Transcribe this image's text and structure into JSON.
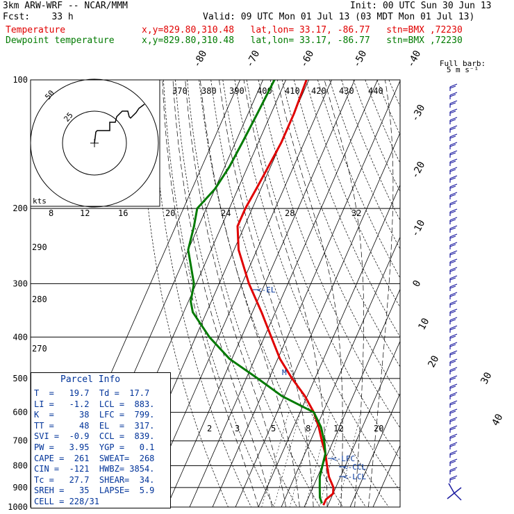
{
  "header": {
    "title": "3km ARW-WRF -- NCAR/MMM",
    "init": "Init: 00 UTC Sun 30 Jun 13",
    "fcst": "Fcst:    33 h",
    "valid": "Valid: 09 UTC Mon 01 Jul 13 (03 MDT Mon 01 Jul 13)",
    "temp_label": "Temperature",
    "dew_label": "Dewpoint temperature",
    "temp_loc": "x,y=829.80,310.48   lat,lon= 33.17, -86.77   stn=BMX ,72230",
    "dew_loc": "x,y=829.80,310.48   lat,lon= 33.17, -86.77   stn=BMX ,72230"
  },
  "colors": {
    "temperature": "#e00000",
    "dewpoint": "#007a00",
    "wind": "#1a1aa0",
    "parcel": "#003399"
  },
  "chart_data": {
    "type": "line",
    "subtype": "skew-T log-P sounding",
    "pressure_levels": [
      "100",
      "200",
      "300",
      "400",
      "500",
      "600",
      "700",
      "800",
      "900",
      "1000"
    ],
    "isotherm_labels": [
      "-80",
      "-70",
      "-60",
      "-50",
      "-40",
      "-30",
      "-20",
      "-10",
      "0",
      "10",
      "20",
      "30",
      "40"
    ],
    "theta_labels": [
      "370",
      "380",
      "390",
      "400",
      "410",
      "420",
      "430",
      "440"
    ],
    "thetae_labels": [
      "290",
      "280",
      "270"
    ],
    "mixing_ratio_labels": [
      "2",
      "3",
      "5",
      "8",
      "12",
      "20"
    ],
    "hodograph_speed_labels": [
      "8",
      "12",
      "16",
      "20",
      "24",
      "28",
      "32"
    ],
    "hodograph": {
      "units": "kts",
      "ring_labels": [
        "25",
        "50"
      ]
    },
    "level_marks": {
      "el": "EL",
      "lfc": "LFC",
      "ccl": "CCL",
      "lcl": "LCL",
      "lapse": "M"
    },
    "wind_barb_legend": [
      "Full barb:",
      "5 m s⁻¹"
    ],
    "series": [
      {
        "name": "Temperature",
        "points": [
          [
            100,
            -71
          ],
          [
            120,
            -70
          ],
          [
            140,
            -70
          ],
          [
            160,
            -71
          ],
          [
            180,
            -72
          ],
          [
            200,
            -73
          ],
          [
            220,
            -73
          ],
          [
            250,
            -68
          ],
          [
            300,
            -57
          ],
          [
            350,
            -46
          ],
          [
            400,
            -37
          ],
          [
            450,
            -29
          ],
          [
            500,
            -20
          ],
          [
            550,
            -11
          ],
          [
            600,
            -4
          ],
          [
            650,
            1
          ],
          [
            700,
            5
          ],
          [
            750,
            9
          ],
          [
            800,
            12
          ],
          [
            850,
            15
          ],
          [
            900,
            19
          ],
          [
            930,
            20
          ],
          [
            960,
            18
          ],
          [
            990,
            18
          ]
        ]
      },
      {
        "name": "Dewpoint temperature",
        "points": [
          [
            100,
            -85
          ],
          [
            120,
            -86
          ],
          [
            140,
            -87
          ],
          [
            160,
            -88
          ],
          [
            180,
            -90
          ],
          [
            200,
            -94
          ],
          [
            220,
            -92
          ],
          [
            250,
            -90
          ],
          [
            300,
            -81
          ],
          [
            330,
            -79
          ],
          [
            350,
            -76
          ],
          [
            400,
            -64
          ],
          [
            450,
            -51
          ],
          [
            500,
            -35
          ],
          [
            550,
            -21
          ],
          [
            600,
            -4
          ],
          [
            650,
            2
          ],
          [
            700,
            6
          ],
          [
            750,
            9
          ],
          [
            800,
            10
          ],
          [
            850,
            11
          ],
          [
            900,
            13
          ],
          [
            950,
            15
          ],
          [
            980,
            17
          ]
        ]
      }
    ]
  },
  "parcel_info": {
    "title": "Parcel  Info",
    "rows": [
      "T  =   19.7  Td =  17.7",
      "LI =   -1.2  LCL =  883.",
      "K  =     38  LFC =  799.",
      "TT =     48  EL  =  317.",
      "SVI =  -0.9  CCL =  839.",
      "PW =   3.95  YGP =   0.1",
      "CAPE =  261  SWEAT=  268",
      "CIN =  -121  HWBZ= 3854.",
      "Tc =   27.7  SHEAR=  34.",
      "SREH =   35  LAPSE=  5.9",
      "CELL = 228/31"
    ]
  }
}
